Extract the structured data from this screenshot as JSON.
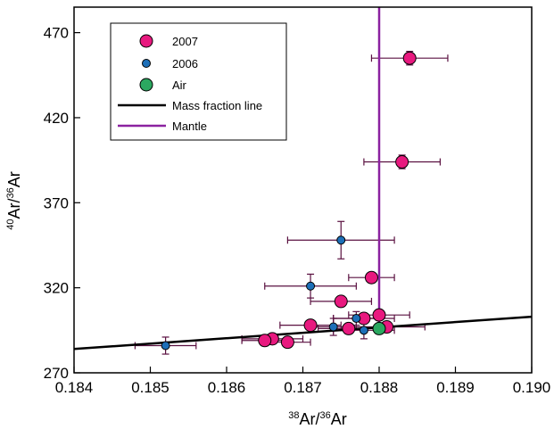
{
  "chart_data": {
    "type": "scatter",
    "xlabel_sup": "38",
    "xlabel_main": "Ar/",
    "xlabel_sup2": "36",
    "xlabel_tail": "Ar",
    "ylabel_sup": "40",
    "ylabel_main": "Ar/",
    "ylabel_sup2": "36",
    "ylabel_tail": "Ar",
    "xlim": [
      0.184,
      0.19
    ],
    "ylim": [
      270,
      485
    ],
    "x_ticks": [
      0.184,
      0.185,
      0.186,
      0.187,
      0.188,
      0.189,
      0.19
    ],
    "x_tick_labels": [
      "0.184",
      "0.185",
      "0.186",
      "0.187",
      "0.188",
      "0.189",
      "0.190"
    ],
    "y_ticks": [
      270,
      320,
      370,
      420,
      470
    ],
    "y_tick_labels": [
      "270",
      "320",
      "370",
      "420",
      "470"
    ],
    "grid": false,
    "legend_placement": "top-left",
    "legend": [
      {
        "name": "2007",
        "kind": "marker",
        "color": "#e8197f",
        "size": "large"
      },
      {
        "name": "2006",
        "kind": "marker",
        "color": "#1d6fb8",
        "size": "small"
      },
      {
        "name": "Air",
        "kind": "marker",
        "color": "#2ba860",
        "size": "large"
      },
      {
        "name": "Mass fraction line",
        "kind": "line",
        "color": "#000000"
      },
      {
        "name": "Mantle",
        "kind": "line",
        "color": "#8b22a0"
      }
    ],
    "series": [
      {
        "name": "2007",
        "color": "#e8197f",
        "marker_size": "large",
        "points": [
          {
            "x": 0.1884,
            "y": 455,
            "xerr": 0.0005,
            "yerr": 4
          },
          {
            "x": 0.1883,
            "y": 394,
            "xerr": 0.0005,
            "yerr": 4
          },
          {
            "x": 0.1879,
            "y": 326,
            "xerr": 0.0003,
            "yerr": 3
          },
          {
            "x": 0.1875,
            "y": 312,
            "xerr": 0.0004,
            "yerr": 3
          },
          {
            "x": 0.188,
            "y": 304,
            "xerr": 0.0004,
            "yerr": 3
          },
          {
            "x": 0.1878,
            "y": 302,
            "xerr": 0.0004,
            "yerr": 3
          },
          {
            "x": 0.1871,
            "y": 298,
            "xerr": 0.0004,
            "yerr": 3
          },
          {
            "x": 0.1876,
            "y": 296,
            "xerr": 0.0004,
            "yerr": 3
          },
          {
            "x": 0.1881,
            "y": 297,
            "xerr": 0.0005,
            "yerr": 3
          },
          {
            "x": 0.1866,
            "y": 290,
            "xerr": 0.0004,
            "yerr": 3
          },
          {
            "x": 0.1868,
            "y": 288,
            "xerr": 0.0003,
            "yerr": 3
          },
          {
            "x": 0.1865,
            "y": 289,
            "xerr": 0.0003,
            "yerr": 3
          }
        ]
      },
      {
        "name": "2006",
        "color": "#1d6fb8",
        "marker_size": "small",
        "points": [
          {
            "x": 0.1875,
            "y": 348,
            "xerr": 0.0007,
            "yerr": 11
          },
          {
            "x": 0.1871,
            "y": 321,
            "xerr": 0.0006,
            "yerr": 7
          },
          {
            "x": 0.1877,
            "y": 302,
            "xerr": 0.0003,
            "yerr": 4
          },
          {
            "x": 0.1874,
            "y": 297,
            "xerr": 0.0003,
            "yerr": 5
          },
          {
            "x": 0.1878,
            "y": 295,
            "xerr": 0.0004,
            "yerr": 5
          },
          {
            "x": 0.1852,
            "y": 286,
            "xerr": 0.0004,
            "yerr": 5
          }
        ]
      },
      {
        "name": "Air",
        "color": "#2ba860",
        "marker_size": "large",
        "points": [
          {
            "x": 0.188,
            "y": 296,
            "xerr": 0,
            "yerr": 0
          }
        ]
      }
    ],
    "lines": [
      {
        "name": "Mass fraction line",
        "color": "#000000",
        "points": [
          [
            0.184,
            284
          ],
          [
            0.19,
            303
          ]
        ]
      },
      {
        "name": "Mantle",
        "color": "#8b22a0",
        "points": [
          [
            0.188,
            296
          ],
          [
            0.188,
            485
          ]
        ]
      }
    ]
  }
}
